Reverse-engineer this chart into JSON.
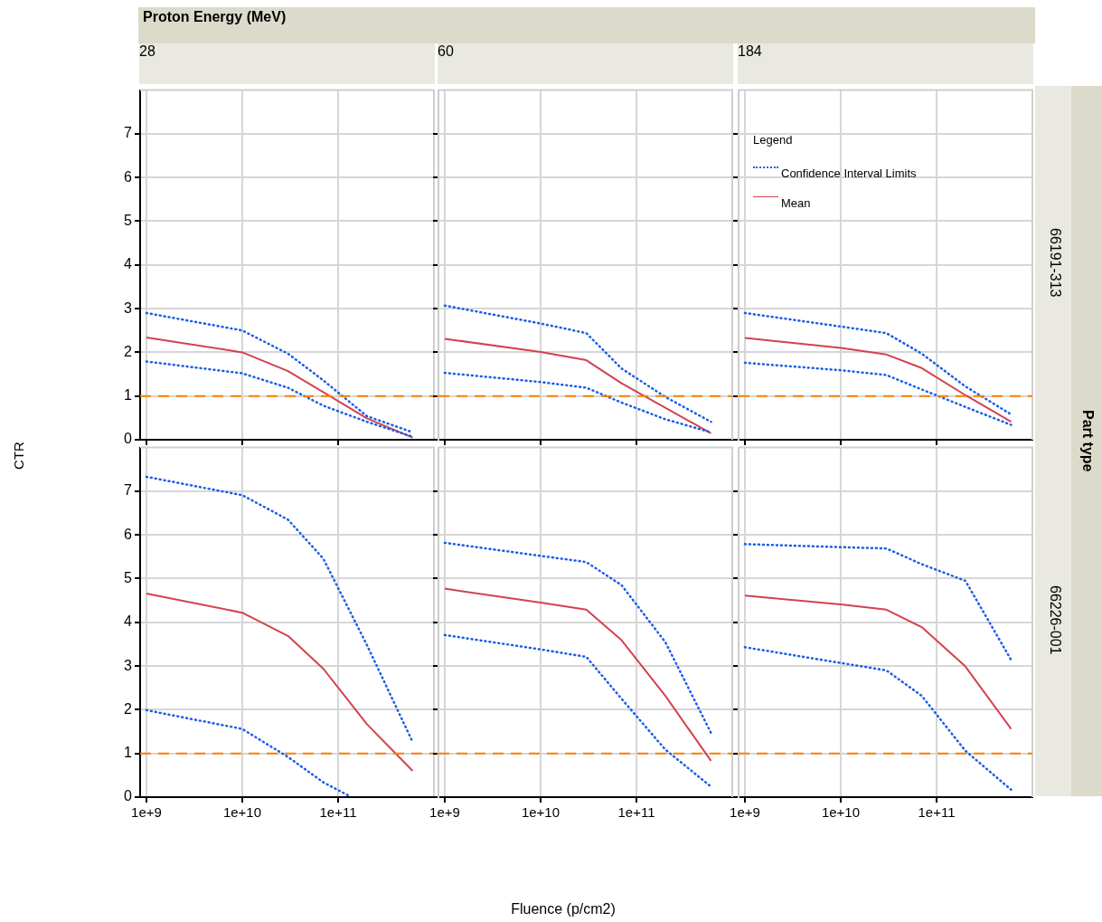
{
  "chart_data": [
    {
      "type": "line",
      "title": "28",
      "ylabel": "CTR",
      "annotations": [
        "Proton Energy (MeV)"
      ],
      "x": [
        1000000000.0,
        10000000000.0,
        30000000000.0,
        70000000000.0,
        200000000000.0,
        600000000000.0
      ],
      "xlim": [
        860000000.0,
        1000000000000.0
      ],
      "xticks": [
        {
          "value": 1000000000.0,
          "label": null
        },
        {
          "value": 10000000000.0,
          "label": null
        },
        {
          "value": 100000000000.0,
          "label": null
        }
      ],
      "ylim": [
        0,
        8
      ],
      "yticks": [
        0,
        1,
        2,
        3,
        4,
        5,
        6,
        7
      ],
      "log": "x",
      "grid": true,
      "marker": "none",
      "tick_labels": "y",
      "ref_lines": [
        {
          "axis": "y",
          "value": 1,
          "color": "#ff8000",
          "line_style": "dashed"
        }
      ],
      "series": [
        {
          "color": "#1a5ee6",
          "line_style": "dotted",
          "values": [
            2.9,
            2.5,
            1.97,
            1.36,
            0.54,
            0.17
          ]
        },
        {
          "color": "#1a5ee6",
          "line_style": "dotted",
          "values": [
            1.79,
            1.52,
            1.19,
            0.78,
            0.41,
            0.07
          ]
        },
        {
          "color": "#d3424f",
          "line_style": "solid",
          "values": [
            2.34,
            2.0,
            1.57,
            1.09,
            0.49,
            0.05
          ]
        }
      ]
    },
    {
      "type": "line",
      "title": "60",
      "x": [
        1000000000.0,
        10000000000.0,
        30000000000.0,
        70000000000.0,
        200000000000.0,
        600000000000.0
      ],
      "xlim": [
        860000000.0,
        1000000000000.0
      ],
      "xticks": [
        {
          "value": 1000000000.0,
          "label": null
        },
        {
          "value": 10000000000.0,
          "label": null
        },
        {
          "value": 100000000000.0,
          "label": null
        }
      ],
      "ylim": [
        0,
        8
      ],
      "yticks": [
        0,
        1,
        2,
        3,
        4,
        5,
        6,
        7
      ],
      "log": "x",
      "grid": true,
      "marker": "none",
      "tick_labels": false,
      "ref_lines": [
        {
          "axis": "y",
          "value": 1,
          "color": "#ff8000",
          "line_style": "dashed"
        }
      ],
      "series": [
        {
          "color": "#1a5ee6",
          "line_style": "dotted",
          "values": [
            3.07,
            2.66,
            2.44,
            1.63,
            0.98,
            0.41
          ]
        },
        {
          "color": "#1a5ee6",
          "line_style": "dotted",
          "values": [
            1.53,
            1.32,
            1.19,
            0.85,
            0.47,
            0.17
          ]
        },
        {
          "color": "#d3424f",
          "line_style": "solid",
          "values": [
            2.31,
            2.01,
            1.82,
            1.29,
            0.73,
            0.15
          ]
        }
      ]
    },
    {
      "type": "line",
      "title": "184",
      "y2label": "66191-313",
      "annotations": [
        "Part type"
      ],
      "legend": "top left",
      "legend_title": "Legend",
      "x": [
        1000000000.0,
        10000000000.0,
        30000000000.0,
        70000000000.0,
        200000000000.0,
        600000000000.0
      ],
      "xlim": [
        860000000.0,
        1000000000000.0
      ],
      "xticks": [
        {
          "value": 1000000000.0,
          "label": null
        },
        {
          "value": 10000000000.0,
          "label": null
        },
        {
          "value": 100000000000.0,
          "label": null
        }
      ],
      "ylim": [
        0,
        8
      ],
      "yticks": [
        0,
        1,
        2,
        3,
        4,
        5,
        6,
        7
      ],
      "log": "x",
      "grid": true,
      "marker": "none",
      "tick_labels": false,
      "ref_lines": [
        {
          "axis": "y",
          "value": 1,
          "color": "#ff8000",
          "line_style": "dashed"
        }
      ],
      "series": [
        {
          "name": "Confidence Interval Limits",
          "color": "#1a5ee6",
          "line_style": "dotted",
          "values": [
            2.9,
            2.59,
            2.44,
            1.97,
            1.22,
            0.58
          ]
        },
        {
          "color": "#1a5ee6",
          "line_style": "dotted",
          "values": [
            1.76,
            1.59,
            1.48,
            1.15,
            0.75,
            0.34
          ]
        },
        {
          "name": "Mean",
          "color": "#d3424f",
          "line_style": "solid",
          "values": [
            2.33,
            2.1,
            1.95,
            1.64,
            1.02,
            0.41
          ]
        }
      ]
    },
    {
      "type": "line",
      "x": [
        1000000000.0,
        10000000000.0,
        30000000000.0,
        70000000000.0,
        200000000000.0,
        600000000000.0
      ],
      "xlim": [
        860000000.0,
        1000000000000.0
      ],
      "xticks": [
        {
          "value": 1000000000.0,
          "label": "1e+9"
        },
        {
          "value": 10000000000.0,
          "label": "1e+10"
        },
        {
          "value": 100000000000.0,
          "label": "1e+11"
        }
      ],
      "ylim": [
        0,
        8
      ],
      "yticks": [
        0,
        1,
        2,
        3,
        4,
        5,
        6,
        7
      ],
      "log": "x",
      "grid": true,
      "marker": "none",
      "ref_lines": [
        {
          "axis": "y",
          "value": 1,
          "color": "#ff8000",
          "line_style": "dashed"
        }
      ],
      "series": [
        {
          "color": "#1a5ee6",
          "line_style": "dotted",
          "values": [
            7.33,
            6.91,
            6.35,
            5.46,
            3.48,
            1.26
          ]
        },
        {
          "color": "#1a5ee6",
          "line_style": "dotted",
          "x": [
            1000000000.0,
            10000000000.0,
            30000000000.0,
            70000000000.0,
            130000000000.0
          ],
          "values": [
            1.99,
            1.56,
            0.92,
            0.34,
            0.03
          ]
        },
        {
          "color": "#d3424f",
          "line_style": "solid",
          "values": [
            4.66,
            4.22,
            3.69,
            2.94,
            1.67,
            0.6
          ]
        }
      ]
    },
    {
      "type": "line",
      "xlabel": "Fluence (p/cm2)",
      "x": [
        1000000000.0,
        10000000000.0,
        30000000000.0,
        70000000000.0,
        200000000000.0,
        600000000000.0
      ],
      "xlim": [
        860000000.0,
        1000000000000.0
      ],
      "xticks": [
        {
          "value": 1000000000.0,
          "label": "1e+9"
        },
        {
          "value": 10000000000.0,
          "label": "1e+10"
        },
        {
          "value": 100000000000.0,
          "label": "1e+11"
        }
      ],
      "ylim": [
        0,
        8
      ],
      "yticks": [
        0,
        1,
        2,
        3,
        4,
        5,
        6,
        7
      ],
      "log": "x",
      "grid": true,
      "marker": "none",
      "tick_labels": "x",
      "ref_lines": [
        {
          "axis": "y",
          "value": 1,
          "color": "#ff8000",
          "line_style": "dashed"
        }
      ],
      "series": [
        {
          "color": "#1a5ee6",
          "line_style": "dotted",
          "values": [
            5.82,
            5.52,
            5.38,
            4.85,
            3.55,
            1.47
          ]
        },
        {
          "color": "#1a5ee6",
          "line_style": "dotted",
          "values": [
            3.71,
            3.38,
            3.21,
            2.25,
            1.09,
            0.24
          ]
        },
        {
          "color": "#d3424f",
          "line_style": "solid",
          "values": [
            4.77,
            4.45,
            4.29,
            3.59,
            2.32,
            0.83
          ]
        }
      ]
    },
    {
      "type": "line",
      "y2label": "66226-001",
      "x": [
        1000000000.0,
        10000000000.0,
        30000000000.0,
        70000000000.0,
        200000000000.0,
        600000000000.0
      ],
      "xlim": [
        860000000.0,
        1000000000000.0
      ],
      "xticks": [
        {
          "value": 1000000000.0,
          "label": "1e+9"
        },
        {
          "value": 10000000000.0,
          "label": "1e+10"
        },
        {
          "value": 100000000000.0,
          "label": "1e+11"
        }
      ],
      "ylim": [
        0,
        8
      ],
      "yticks": [
        0,
        1,
        2,
        3,
        4,
        5,
        6,
        7
      ],
      "log": "x",
      "grid": true,
      "marker": "none",
      "tick_labels": "x",
      "ref_lines": [
        {
          "axis": "y",
          "value": 1,
          "color": "#ff8000",
          "line_style": "dashed"
        }
      ],
      "series": [
        {
          "color": "#1a5ee6",
          "line_style": "dotted",
          "values": [
            5.79,
            5.72,
            5.69,
            5.33,
            4.95,
            3.14
          ]
        },
        {
          "color": "#1a5ee6",
          "line_style": "dotted",
          "values": [
            3.43,
            3.07,
            2.9,
            2.32,
            1.06,
            0.17
          ]
        },
        {
          "color": "#d3424f",
          "line_style": "solid",
          "values": [
            4.61,
            4.41,
            4.29,
            3.89,
            2.99,
            1.56
          ]
        }
      ]
    }
  ]
}
